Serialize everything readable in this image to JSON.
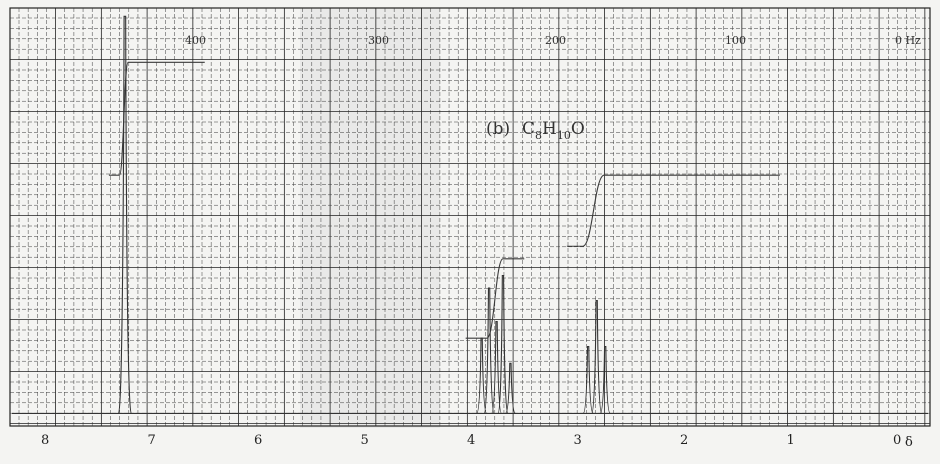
{
  "chart_data": {
    "type": "line",
    "title": "(b) C8H10O",
    "title_parts": {
      "prefix": "(b)",
      "formula": "C8H10O"
    },
    "xlabel": "δ",
    "top_axis_unit": "Hz",
    "xlim_ppm": [
      8.0,
      -0.3
    ],
    "x_direction": "reversed",
    "bottom_ticks": [
      "8",
      "7",
      "6",
      "5",
      "4",
      "3",
      "2",
      "1",
      "0"
    ],
    "top_ticks": [
      "400",
      "300",
      "200",
      "100",
      "0"
    ],
    "grid": true,
    "peaks": [
      {
        "ppm": 7.25,
        "height": 0.95,
        "width": 0.03
      },
      {
        "ppm": 3.9,
        "height": 0.18,
        "width": 0.02
      },
      {
        "ppm": 3.83,
        "height": 0.3,
        "width": 0.02
      },
      {
        "ppm": 3.76,
        "height": 0.22,
        "width": 0.02
      },
      {
        "ppm": 3.7,
        "height": 0.33,
        "width": 0.02
      },
      {
        "ppm": 3.63,
        "height": 0.12,
        "width": 0.02
      },
      {
        "ppm": 2.9,
        "height": 0.16,
        "width": 0.02
      },
      {
        "ppm": 2.82,
        "height": 0.27,
        "width": 0.02
      },
      {
        "ppm": 2.74,
        "height": 0.16,
        "width": 0.02
      }
    ],
    "integrals": [
      {
        "from_ppm": 7.4,
        "to_ppm": 6.5,
        "steps": [
          7.3,
          7.22
        ],
        "start": 0.6,
        "end": 0.87
      },
      {
        "from_ppm": 4.05,
        "to_ppm": 3.5,
        "steps": [
          3.85,
          3.7
        ],
        "start": 0.21,
        "end": 0.4
      },
      {
        "from_ppm": 3.1,
        "to_ppm": 1.1,
        "steps": [
          2.95,
          2.75
        ],
        "start": 0.43,
        "end": 0.6
      }
    ],
    "annotations": []
  }
}
